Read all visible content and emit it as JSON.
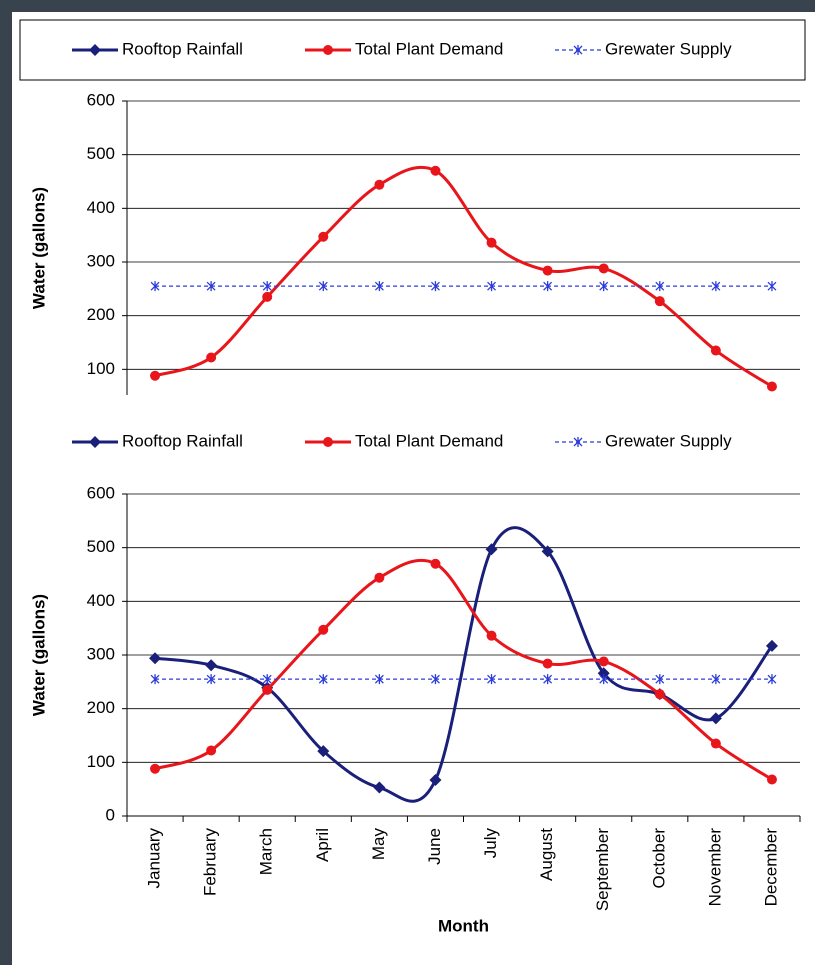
{
  "chart_data": [
    {
      "type": "line",
      "ylabel": "Water (gallons)",
      "ylim": [
        0,
        600
      ],
      "yticks": [
        100,
        200,
        300,
        400,
        500,
        600
      ],
      "grid": true,
      "legend": "top",
      "series": [
        {
          "name": "Rooftop Rainfall",
          "color": "#1a1f7a",
          "marker": "diamond",
          "smooth": true,
          "values": [
            null,
            null,
            null,
            null,
            null,
            null,
            null,
            null,
            null,
            null,
            null,
            null
          ]
        },
        {
          "name": "Total Plant Demand",
          "color": "#e8161b",
          "marker": "circle",
          "smooth": true,
          "values": [
            88,
            122,
            235,
            347,
            444,
            470,
            336,
            284,
            288,
            227,
            135,
            68
          ]
        },
        {
          "name": "Grewater Supply",
          "color": "#2b3cd9",
          "marker": "asterisk",
          "dashed": true,
          "values": [
            255,
            255,
            255,
            255,
            255,
            255,
            255,
            255,
            255,
            255,
            255,
            255
          ]
        }
      ]
    },
    {
      "type": "line",
      "ylabel": "Water (gallons)",
      "xlabel": "Month",
      "ylim": [
        0,
        600
      ],
      "yticks": [
        0,
        100,
        200,
        300,
        400,
        500,
        600
      ],
      "grid": true,
      "legend": "top",
      "categories": [
        "January",
        "February",
        "March",
        "April",
        "May",
        "June",
        "July",
        "August",
        "September",
        "October",
        "November",
        "December"
      ],
      "series": [
        {
          "name": "Rooftop Rainfall",
          "color": "#1a1f7a",
          "marker": "diamond",
          "smooth": true,
          "values": [
            294,
            281,
            239,
            121,
            53,
            67,
            497,
            493,
            266,
            227,
            182,
            317
          ]
        },
        {
          "name": "Total Plant Demand",
          "color": "#e8161b",
          "marker": "circle",
          "smooth": true,
          "values": [
            88,
            122,
            235,
            347,
            444,
            470,
            336,
            284,
            288,
            227,
            135,
            68
          ]
        },
        {
          "name": "Grewater Supply",
          "color": "#2b3cd9",
          "marker": "asterisk",
          "dashed": true,
          "values": [
            255,
            255,
            255,
            255,
            255,
            255,
            255,
            255,
            255,
            255,
            255,
            255
          ]
        }
      ]
    }
  ]
}
